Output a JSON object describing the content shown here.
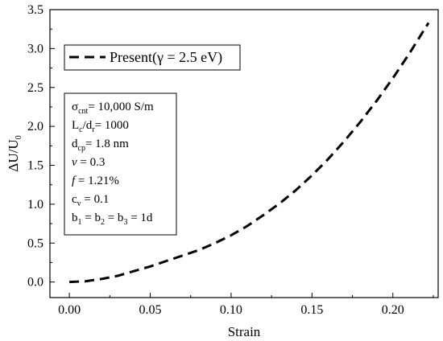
{
  "chart_data": {
    "type": "line",
    "xlabel": "Strain",
    "ylabel_main": "ΔU/U",
    "ylabel_sub": "0",
    "xlim": [
      -0.012,
      0.228
    ],
    "ylim": [
      -0.2,
      3.5
    ],
    "xticks": [
      0.0,
      0.05,
      0.1,
      0.15,
      0.2
    ],
    "xtick_labels": [
      "0.00",
      "0.05",
      "0.10",
      "0.15",
      "0.20"
    ],
    "yticks": [
      0.0,
      0.5,
      1.0,
      1.5,
      2.0,
      2.5,
      3.0,
      3.5
    ],
    "ytick_labels": [
      "0.0",
      "0.5",
      "1.0",
      "1.5",
      "2.0",
      "2.5",
      "3.0",
      "3.5"
    ],
    "series": [
      {
        "name": "Present(γ = 2.5 eV)",
        "style": "dashed",
        "color": "#000000",
        "x": [
          0.0,
          0.01,
          0.02,
          0.03,
          0.04,
          0.05,
          0.06,
          0.07,
          0.08,
          0.09,
          0.1,
          0.11,
          0.12,
          0.13,
          0.14,
          0.15,
          0.16,
          0.17,
          0.18,
          0.19,
          0.2,
          0.21,
          0.222
        ],
        "y": [
          0.0,
          0.01,
          0.04,
          0.08,
          0.14,
          0.2,
          0.27,
          0.34,
          0.41,
          0.5,
          0.6,
          0.72,
          0.86,
          1.01,
          1.18,
          1.37,
          1.58,
          1.81,
          2.06,
          2.33,
          2.62,
          2.93,
          3.33
        ]
      }
    ],
    "legend_position": "top-left",
    "legend_label": "Present(γ = 2.5 eV)",
    "parameters": [
      {
        "parts": [
          [
            "σ",
            ""
          ],
          [
            "cnt",
            "sub"
          ],
          [
            "= 10,000 S/m",
            ""
          ]
        ]
      },
      {
        "parts": [
          [
            "L",
            ""
          ],
          [
            "c",
            "sub"
          ],
          [
            "/d",
            ""
          ],
          [
            "r",
            "sub"
          ],
          [
            "= 1000",
            ""
          ]
        ]
      },
      {
        "parts": [
          [
            "d",
            ""
          ],
          [
            "cp",
            "sub"
          ],
          [
            "= 1.8 nm",
            ""
          ]
        ]
      },
      {
        "parts": [
          [
            "v",
            "italic"
          ],
          [
            " = 0.3",
            ""
          ]
        ]
      },
      {
        "parts": [
          [
            "f",
            "italic"
          ],
          [
            " = 1.21%",
            ""
          ]
        ]
      },
      {
        "parts": [
          [
            "c",
            ""
          ],
          [
            "v",
            "sub"
          ],
          [
            " = 0.1",
            ""
          ]
        ]
      },
      {
        "parts": [
          [
            "b",
            ""
          ],
          [
            "1",
            "sub"
          ],
          [
            " = b",
            ""
          ],
          [
            "2",
            "sub"
          ],
          [
            " = b",
            ""
          ],
          [
            "3",
            "sub"
          ],
          [
            " = 1d",
            ""
          ]
        ]
      }
    ]
  }
}
